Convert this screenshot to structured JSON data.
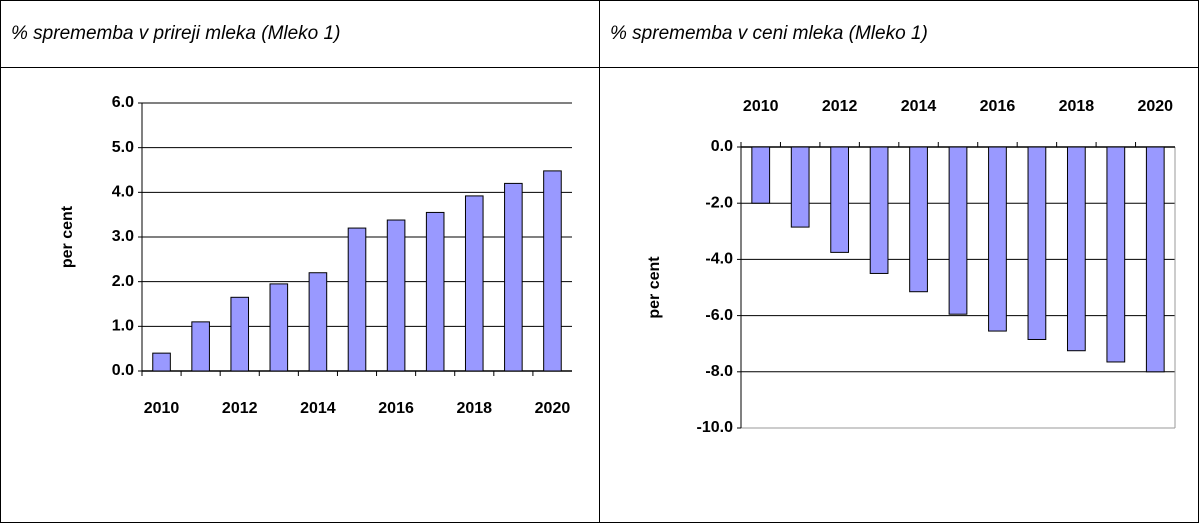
{
  "table": {
    "headers": [
      "% sprememba v prireji mleka (Mleko 1)",
      "% sprememba v ceni mleka (Mleko 1)"
    ]
  },
  "chart_data": [
    {
      "type": "bar",
      "ylabel": "per cent",
      "categories": [
        "2010",
        null,
        "2012",
        null,
        "2014",
        null,
        "2016",
        null,
        "2018",
        null,
        "2020"
      ],
      "values": [
        0.4,
        1.1,
        1.65,
        1.95,
        2.2,
        3.2,
        3.38,
        3.55,
        3.92,
        4.2,
        4.48
      ],
      "color": "#9999ff",
      "ylim": [
        0,
        6
      ],
      "yticks": [
        {
          "value": 0,
          "label": "0.0"
        },
        {
          "value": 1,
          "label": "1.0"
        },
        {
          "value": 2,
          "label": "2.0"
        },
        {
          "value": 3,
          "label": "3.0"
        },
        {
          "value": 4,
          "label": "4.0"
        },
        {
          "value": 5,
          "label": "5.0"
        },
        {
          "value": 6,
          "label": "6.0"
        }
      ],
      "grid": true,
      "x_labels_position": "bottom"
    },
    {
      "type": "bar",
      "ylabel": "per cent",
      "categories": [
        "2010",
        null,
        "2012",
        null,
        "2014",
        null,
        "2016",
        null,
        "2018",
        null,
        "2020"
      ],
      "values": [
        -2.0,
        -2.85,
        -3.75,
        -4.5,
        -5.15,
        -5.95,
        -6.55,
        -6.85,
        -7.25,
        -7.65,
        -8.0
      ],
      "color": "#9999ff",
      "ylim": [
        -10,
        0
      ],
      "yticks": [
        {
          "value": -10,
          "label": "-10.0"
        },
        {
          "value": -8,
          "label": "-8.0"
        },
        {
          "value": -6,
          "label": "-6.0"
        },
        {
          "value": -4,
          "label": "-4.0"
        },
        {
          "value": -2,
          "label": "-2.0"
        },
        {
          "value": 0,
          "label": "0.0"
        }
      ],
      "grid": true,
      "x_labels_position": "top"
    }
  ]
}
